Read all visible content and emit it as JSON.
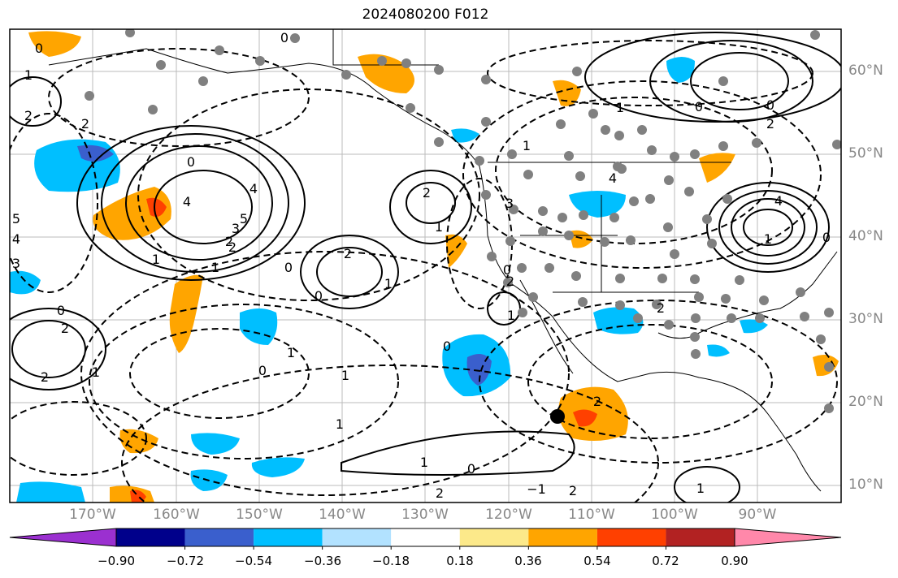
{
  "title": "2024080200 F012",
  "lat_labels": [
    "60°N",
    "50°N",
    "40°N",
    "30°N",
    "20°N",
    "10°N"
  ],
  "lon_labels": [
    "170°W",
    "160°W",
    "150°W",
    "140°W",
    "130°W",
    "120°W",
    "110°W",
    "100°W",
    "90°W"
  ],
  "colorbar": {
    "colors": [
      "#9b30d0",
      "#00008b",
      "#3a5fcd",
      "#00bfff",
      "#b2e2ff",
      "#ffffff",
      "#fce98a",
      "#ffa500",
      "#ff4000",
      "#b22222",
      "#ff88aa"
    ],
    "labels": [
      "−0.90",
      "−0.72",
      "−0.54",
      "−0.36",
      "−0.18",
      "0.18",
      "0.36",
      "0.54",
      "0.72",
      "0.90"
    ]
  },
  "contour_labels": [
    "0",
    "0",
    "1",
    "2",
    "2",
    "4",
    "5",
    "4",
    "3",
    "2",
    "1",
    "0",
    "2",
    "1",
    "0",
    "2",
    "1",
    "0",
    "1",
    "2",
    "3",
    "4",
    "5",
    "0",
    "1",
    "2",
    "2",
    "1",
    "0",
    "1",
    "1",
    "0",
    "1",
    "2",
    "0",
    "−1",
    "1",
    "2",
    "2",
    "2",
    "1",
    "0",
    "0",
    "1",
    "0",
    "2",
    "4",
    "4",
    "3",
    "1",
    "2",
    "0",
    "1"
  ]
}
